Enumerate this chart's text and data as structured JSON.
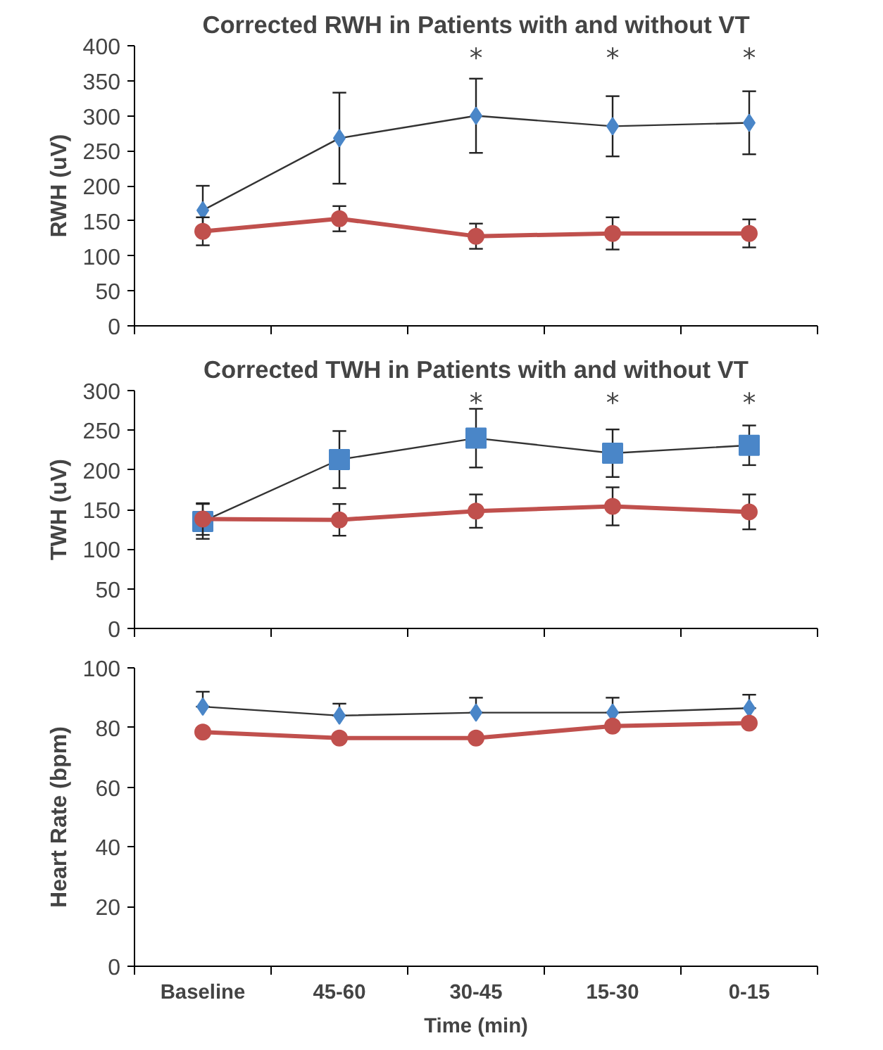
{
  "chart_data": [
    {
      "type": "line",
      "title": "Corrected RWH in Patients with and without VT",
      "ylabel": "RWH (uV)",
      "categories": [
        null,
        null,
        null,
        null,
        null
      ],
      "ylim": [
        0,
        400
      ],
      "yticks": [
        0,
        50,
        100,
        150,
        200,
        250,
        300,
        350,
        400
      ],
      "grid": false,
      "series": [
        {
          "color": "#4a86c8",
          "marker": "diamond",
          "values": [
            165,
            268,
            300,
            285,
            290
          ],
          "errors": [
            35,
            65,
            53,
            43,
            45
          ]
        },
        {
          "color": "#c0504d",
          "marker": "circle",
          "values": [
            135,
            153,
            128,
            132,
            132
          ],
          "errors": [
            20,
            18,
            18,
            23,
            20
          ]
        }
      ],
      "annotations": [
        "*",
        "*",
        "*"
      ]
    },
    {
      "type": "line",
      "title": "Corrected TWH in Patients with and without VT",
      "ylabel": "TWH (uV)",
      "categories": [
        null,
        null,
        null,
        null,
        null
      ],
      "ylim": [
        0,
        300
      ],
      "yticks": [
        0,
        50,
        100,
        150,
        200,
        250,
        300
      ],
      "grid": false,
      "series": [
        {
          "color": "#4a86c8",
          "marker": "square",
          "values": [
            135,
            213,
            240,
            221,
            231
          ],
          "errors": [
            22,
            36,
            37,
            30,
            25
          ]
        },
        {
          "color": "#c0504d",
          "marker": "circle",
          "values": [
            138,
            137,
            148,
            154,
            147
          ],
          "errors": [
            20,
            20,
            21,
            24,
            22
          ]
        }
      ],
      "annotations": [
        "*",
        "*",
        "*"
      ]
    },
    {
      "type": "line",
      "xlabel": "Time (min)",
      "ylabel": "Heart Rate (bpm)",
      "categories": [
        "Baseline",
        "45-60",
        "30-45",
        "15-30",
        "0-15"
      ],
      "ylim": [
        0,
        100
      ],
      "yticks": [
        0,
        20,
        40,
        60,
        80,
        100
      ],
      "grid": false,
      "series": [
        {
          "color": "#4a86c8",
          "marker": "diamond",
          "values": [
            87,
            84,
            85,
            85,
            86.5
          ],
          "errors": [
            [
              87,
              92
            ],
            [
              84,
              88
            ],
            [
              85,
              90
            ],
            [
              85,
              90
            ],
            [
              86.5,
              91
            ]
          ]
        },
        {
          "color": "#c0504d",
          "marker": "circle",
          "values": [
            78.5,
            76.5,
            76.5,
            80.5,
            81.5
          ]
        }
      ]
    }
  ]
}
